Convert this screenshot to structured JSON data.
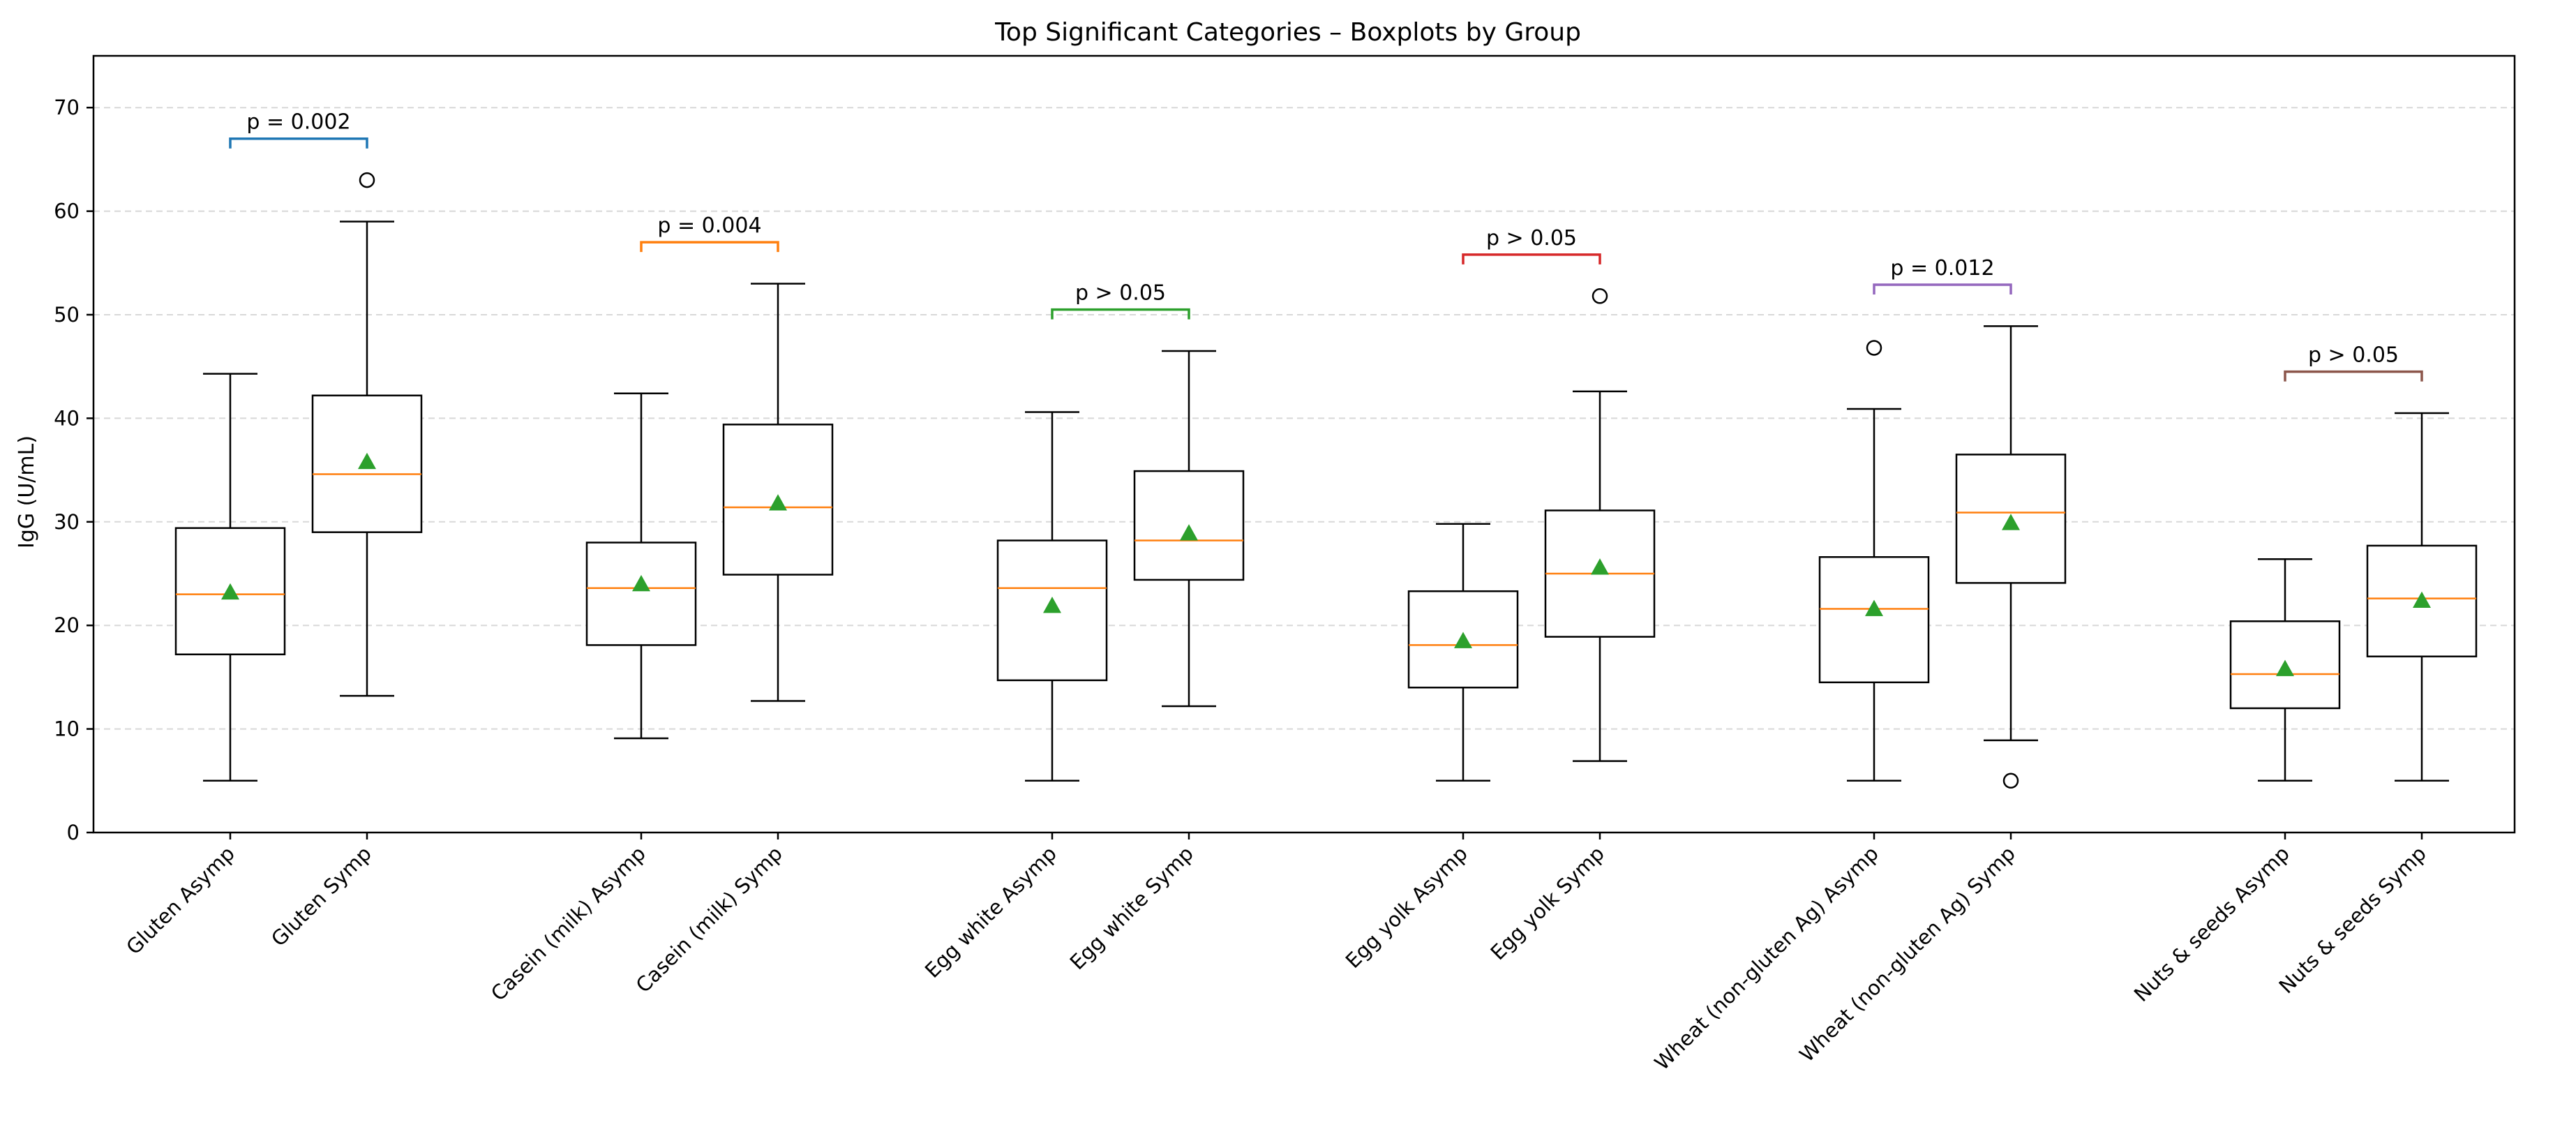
{
  "chart_data": {
    "type": "boxplot",
    "title": "Top Significant Categories – Boxplots by Group",
    "ylabel": "IgG (U/mL)",
    "ylim": [
      0,
      75
    ],
    "yticks": [
      0,
      10,
      20,
      30,
      40,
      50,
      60,
      70
    ],
    "grid": "y-dashed",
    "groups": [
      {
        "pvalue": "p = 0.002",
        "bracket_color": "#1f77b4",
        "bracket_y": 67,
        "boxes": [
          {
            "label": "Gluten Asymp",
            "whislo": 5,
            "q1": 17.2,
            "median": 23.0,
            "q3": 29.4,
            "whishi": 44.3,
            "mean": 23.2,
            "fliers": []
          },
          {
            "label": "Gluten Symp",
            "whislo": 13.2,
            "q1": 29.0,
            "median": 34.6,
            "q3": 42.2,
            "whishi": 59.0,
            "mean": 35.8,
            "fliers": [
              63.0
            ]
          }
        ]
      },
      {
        "pvalue": "p = 0.004",
        "bracket_color": "#ff7f0e",
        "bracket_y": 57,
        "boxes": [
          {
            "label": "Casein (milk) Asymp",
            "whislo": 9.1,
            "q1": 18.1,
            "median": 23.6,
            "q3": 28.0,
            "whishi": 42.4,
            "mean": 24.0,
            "fliers": []
          },
          {
            "label": "Casein (milk) Symp",
            "whislo": 12.7,
            "q1": 24.9,
            "median": 31.4,
            "q3": 39.4,
            "whishi": 53.0,
            "mean": 31.8,
            "fliers": []
          }
        ]
      },
      {
        "pvalue": "p > 0.05",
        "bracket_color": "#2ca02c",
        "bracket_y": 50.5,
        "boxes": [
          {
            "label": "Egg white Asymp",
            "whislo": 5,
            "q1": 14.7,
            "median": 23.6,
            "q3": 28.2,
            "whishi": 40.6,
            "mean": 21.9,
            "fliers": []
          },
          {
            "label": "Egg white Symp",
            "whislo": 12.2,
            "q1": 24.4,
            "median": 28.2,
            "q3": 34.9,
            "whishi": 46.5,
            "mean": 28.9,
            "fliers": []
          }
        ]
      },
      {
        "pvalue": "p > 0.05",
        "bracket_color": "#d62728",
        "bracket_y": 55.8,
        "boxes": [
          {
            "label": "Egg yolk Asymp",
            "whislo": 5,
            "q1": 14.0,
            "median": 18.1,
            "q3": 23.3,
            "whishi": 29.8,
            "mean": 18.5,
            "fliers": []
          },
          {
            "label": "Egg yolk Symp",
            "whislo": 6.9,
            "q1": 18.9,
            "median": 25.0,
            "q3": 31.1,
            "whishi": 42.6,
            "mean": 25.6,
            "fliers": [
              51.8
            ]
          }
        ]
      },
      {
        "pvalue": "p = 0.012",
        "bracket_color": "#9467bd",
        "bracket_y": 52.9,
        "boxes": [
          {
            "label": "Wheat (non-gluten Ag) Asymp",
            "whislo": 5,
            "q1": 14.5,
            "median": 21.6,
            "q3": 26.6,
            "whishi": 40.9,
            "mean": 21.6,
            "fliers": [
              46.8
            ]
          },
          {
            "label": "Wheat (non-gluten Ag) Symp",
            "whislo": 8.9,
            "q1": 24.1,
            "median": 30.9,
            "q3": 36.5,
            "whishi": 48.9,
            "mean": 29.9,
            "fliers": [
              5.0
            ]
          }
        ]
      },
      {
        "pvalue": "p > 0.05",
        "bracket_color": "#8c564b",
        "bracket_y": 44.5,
        "boxes": [
          {
            "label": "Nuts & seeds Asymp",
            "whislo": 5,
            "q1": 12.0,
            "median": 15.3,
            "q3": 20.4,
            "whishi": 26.4,
            "mean": 15.8,
            "fliers": []
          },
          {
            "label": "Nuts & seeds Symp",
            "whislo": 5,
            "q1": 17.0,
            "median": 22.6,
            "q3": 27.7,
            "whishi": 40.5,
            "mean": 22.4,
            "fliers": []
          }
        ]
      }
    ],
    "colors": {
      "median": "#ff7f0e",
      "mean_marker": "#2ca02c",
      "box_edge": "#000000"
    }
  }
}
